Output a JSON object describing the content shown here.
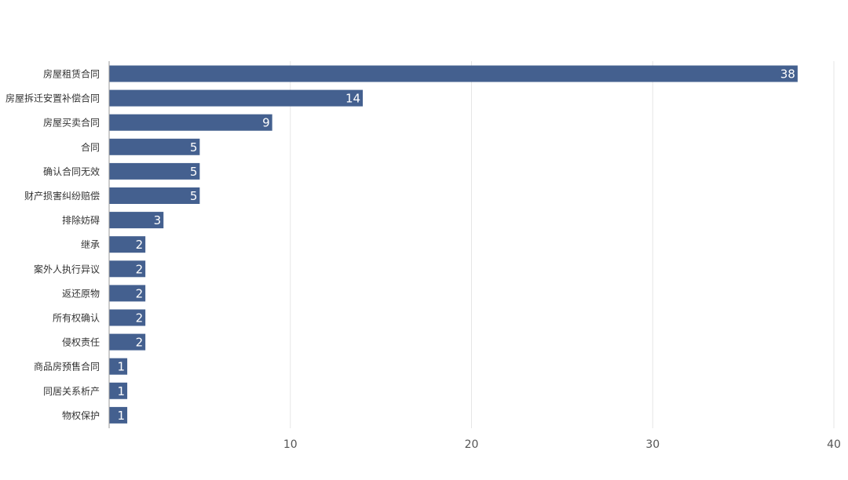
{
  "chart_data": {
    "type": "bar",
    "orientation": "horizontal",
    "categories": [
      "房屋租赁合同",
      "房屋拆迁安置补偿合同",
      "房屋买卖合同",
      "合同",
      "确认合同无效",
      "财产损害纠纷赔偿",
      "排除妨碍",
      "继承",
      "案外人执行异议",
      "返还原物",
      "所有权确认",
      "侵权责任",
      "商品房预售合同",
      "同居关系析产",
      "物权保护"
    ],
    "values": [
      38,
      14,
      9,
      5,
      5,
      5,
      3,
      2,
      2,
      2,
      2,
      2,
      1,
      1,
      1
    ],
    "data_labels": [
      "38",
      "14",
      "9",
      "5",
      "5",
      "5",
      "3",
      "2",
      "2",
      "2",
      "2",
      "2",
      "1",
      "1",
      "1"
    ],
    "title": "",
    "xlabel": "",
    "ylabel": "",
    "xlim": [
      0,
      40
    ],
    "x_ticks": [
      10,
      20,
      30,
      40
    ],
    "x_tick_labels": [
      "10",
      "20",
      "30",
      "40"
    ],
    "grid": "vertical",
    "legend": "none",
    "bar_color": "#44608f",
    "grid_color": "#e6e6e6",
    "axis_color": "#999999"
  }
}
